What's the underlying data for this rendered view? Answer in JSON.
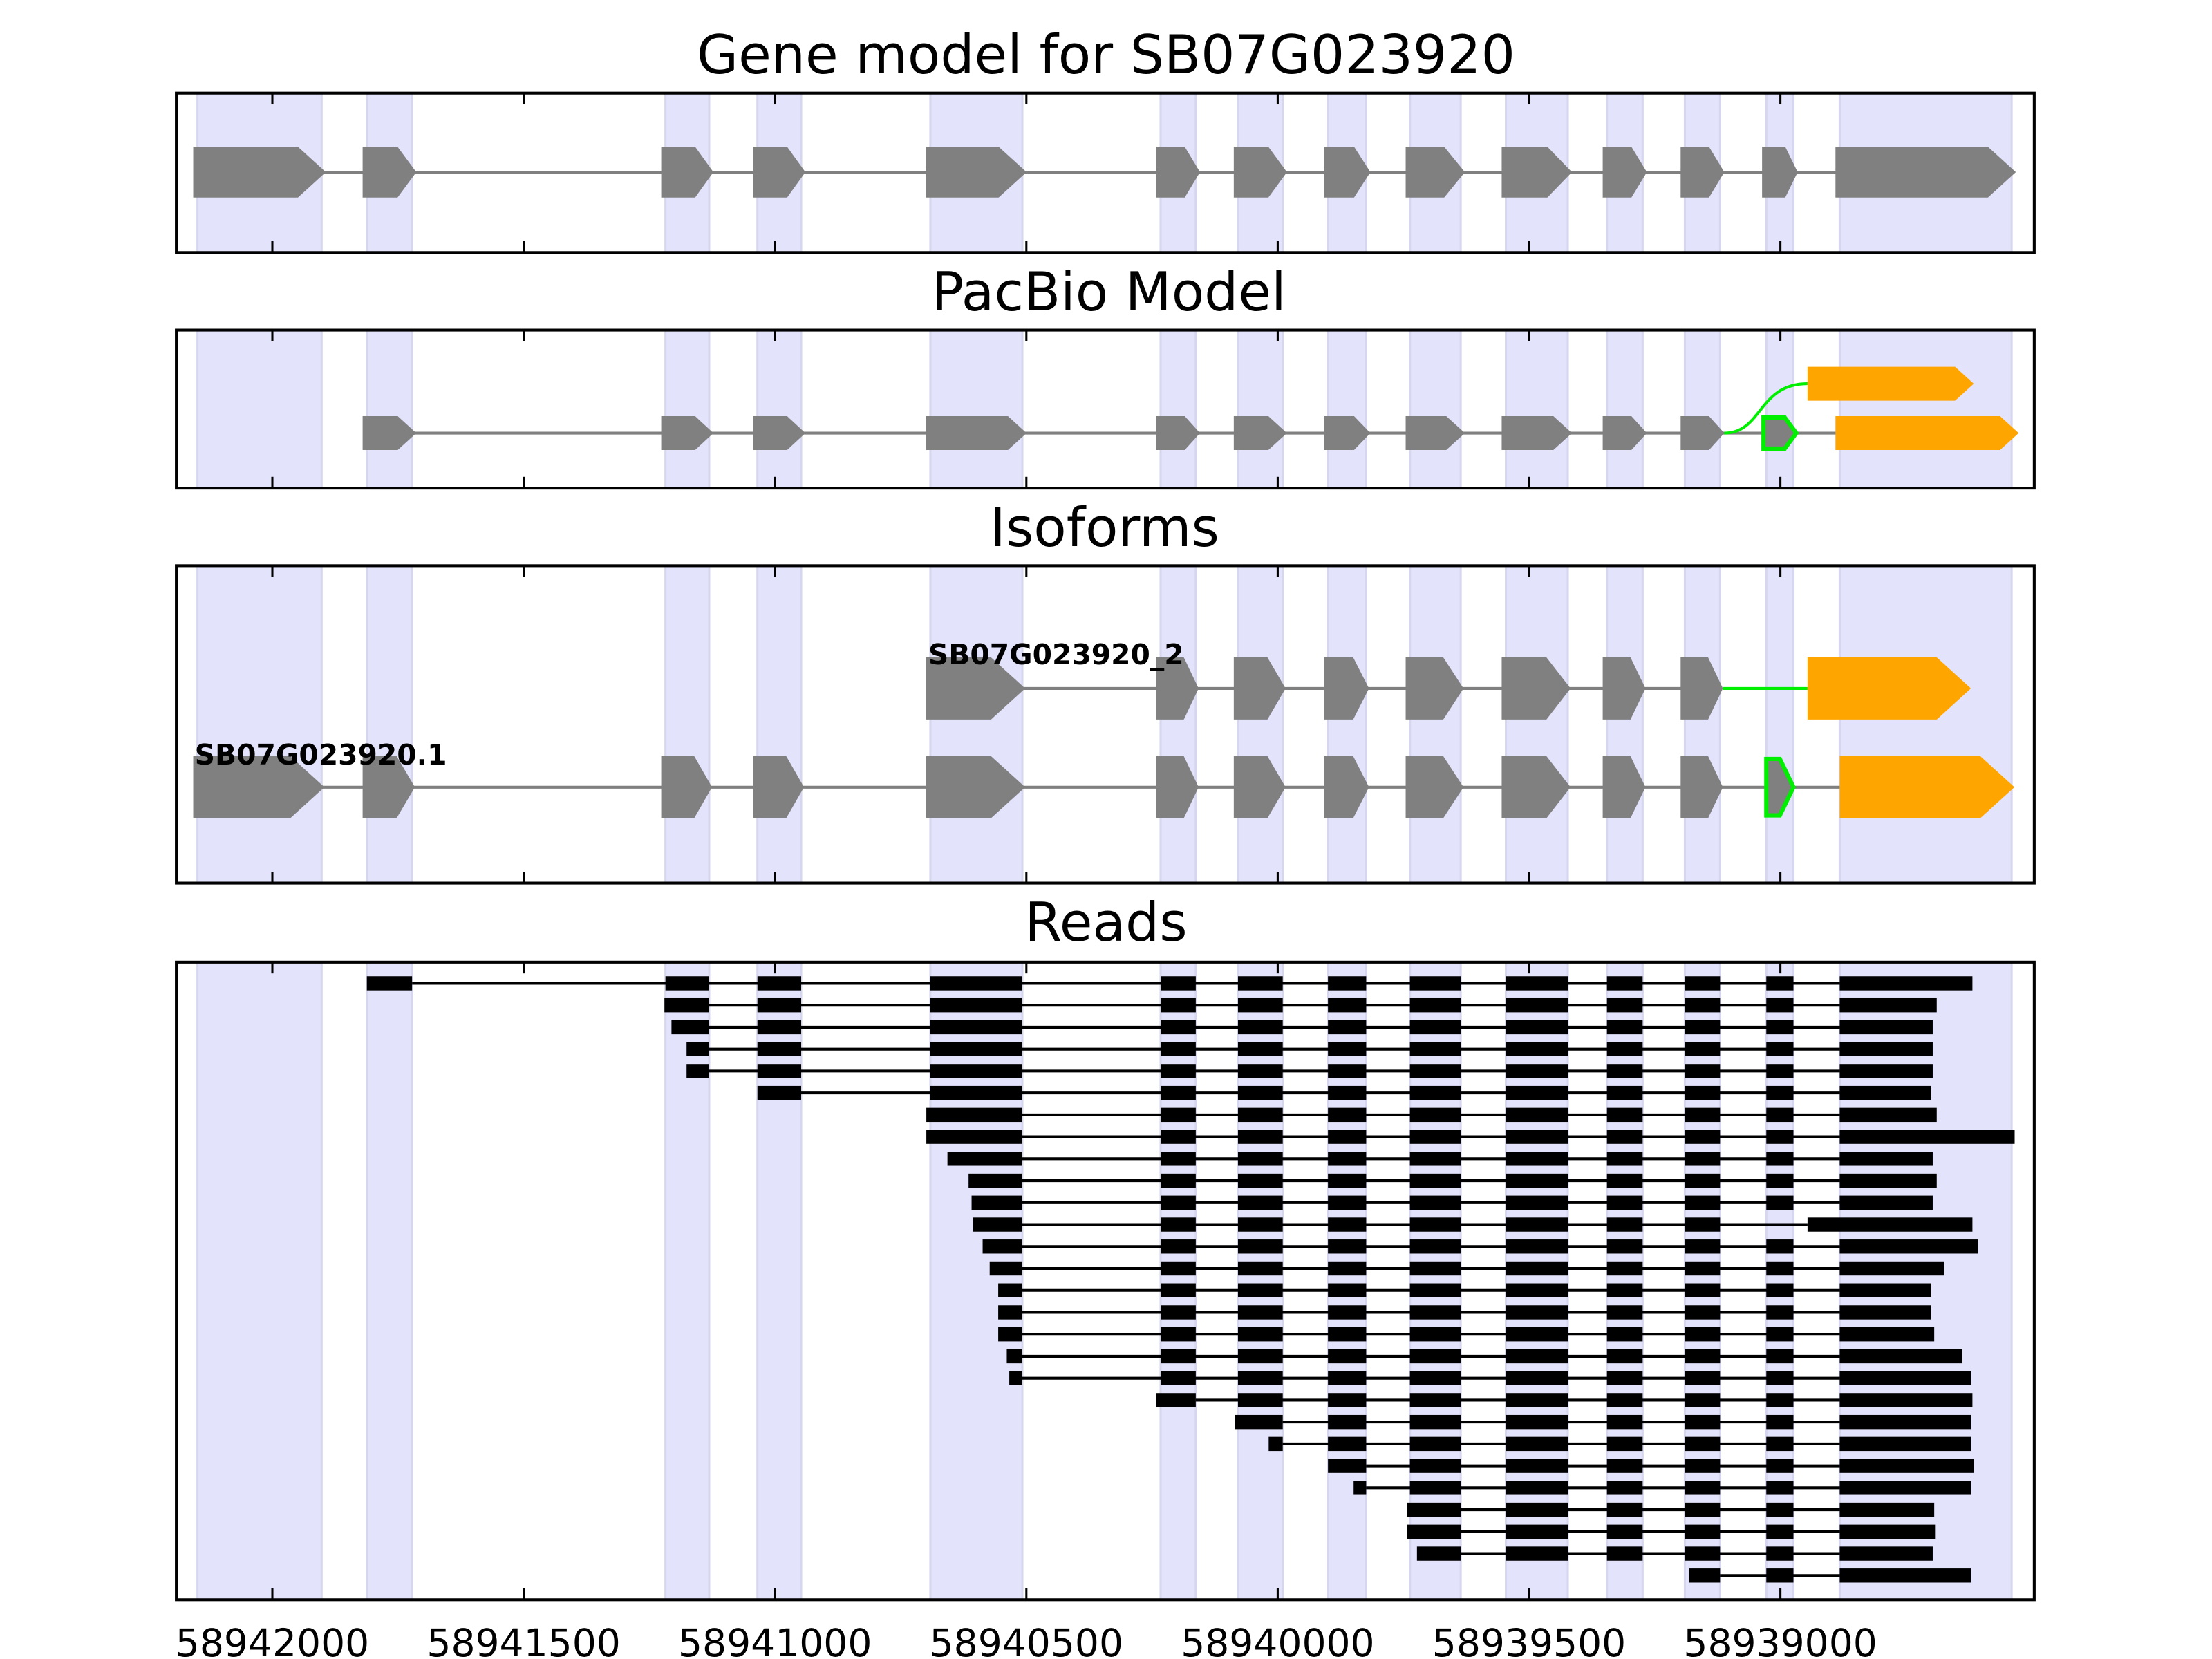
{
  "chart_data": {
    "type": "gene-track",
    "xlim": [
      58942191,
      58938495
    ],
    "x_ticks": [
      58942000,
      58941500,
      58941000,
      58940500,
      58940000,
      58939500,
      58939000
    ],
    "x_tick_labels": [
      "58942000",
      "58941500",
      "58941000",
      "58940500",
      "58940000",
      "58939500",
      "58939000"
    ],
    "colors": {
      "exon": "#808080",
      "intron": "#808080",
      "utr": "#ffa500",
      "novel": "#00ee00",
      "read": "#000000",
      "shade": "#e3e3fb"
    },
    "exons": [
      [
        58942149,
        58941902
      ],
      [
        58941812,
        58941722
      ],
      [
        58941218,
        58941131
      ],
      [
        58941035,
        58940948
      ],
      [
        58940691,
        58940508
      ],
      [
        58940233,
        58940163
      ],
      [
        58940079,
        58939990
      ],
      [
        58939900,
        58939824
      ],
      [
        58939737,
        58939636
      ],
      [
        58939546,
        58939423
      ],
      [
        58939345,
        58939274
      ],
      [
        58939190,
        58939120
      ],
      [
        58939028,
        58938974
      ],
      [
        58938882,
        58938540
      ]
    ],
    "alt_exon": [
      58938946,
      58938621
    ],
    "panels": [
      {
        "title": "Gene model for SB07G023920"
      },
      {
        "title": "PacBio Model"
      },
      {
        "title": "Isoforms",
        "isoforms": [
          {
            "name": "SB07G023920_2",
            "exons": [
              4,
              5,
              6,
              7,
              8,
              9,
              10,
              11
            ],
            "utr": "alt"
          },
          {
            "name": "SB07G023920.1",
            "exons": [
              0,
              1,
              2,
              3,
              4,
              5,
              6,
              7,
              8,
              9,
              10,
              11
            ],
            "novel_exon": 12,
            "utr": 13
          }
        ]
      },
      {
        "title": "Reads"
      }
    ],
    "reads": [
      {
        "start": 58941812,
        "end": 58938618
      },
      {
        "start": 58941220,
        "end": 58938689
      },
      {
        "start": 58941206,
        "end": 58938697
      },
      {
        "start": 58941176,
        "end": 58938697
      },
      {
        "start": 58941176,
        "end": 58938697
      },
      {
        "start": 58941035,
        "end": 58938700
      },
      {
        "start": 58940699,
        "end": 58938689
      },
      {
        "start": 58940699,
        "end": 58938534
      },
      {
        "start": 58940657,
        "end": 58938697
      },
      {
        "start": 58940615,
        "end": 58938689
      },
      {
        "start": 58940609,
        "end": 58938697
      },
      {
        "start": 58940606,
        "end": 58938618,
        "alt": true
      },
      {
        "start": 58940587,
        "end": 58938607
      },
      {
        "start": 58940573,
        "end": 58938674
      },
      {
        "start": 58940556,
        "end": 58938700
      },
      {
        "start": 58940556,
        "end": 58938700
      },
      {
        "start": 58940556,
        "end": 58938694
      },
      {
        "start": 58940539,
        "end": 58938638
      },
      {
        "start": 58940534,
        "end": 58938621
      },
      {
        "start": 58940242,
        "end": 58938618
      },
      {
        "start": 58940085,
        "end": 58938621
      },
      {
        "start": 58940018,
        "end": 58938621
      },
      {
        "start": 58939900,
        "end": 58938615
      },
      {
        "start": 58939849,
        "end": 58938621
      },
      {
        "start": 58939743,
        "end": 58938694
      },
      {
        "start": 58939743,
        "end": 58938691
      },
      {
        "start": 58939723,
        "end": 58938697
      },
      {
        "start": 58939182,
        "end": 58938621
      }
    ]
  }
}
